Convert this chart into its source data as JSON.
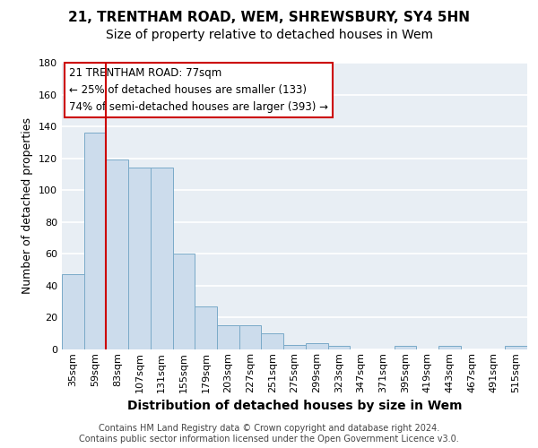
{
  "title1": "21, TRENTHAM ROAD, WEM, SHREWSBURY, SY4 5HN",
  "title2": "Size of property relative to detached houses in Wem",
  "xlabel": "Distribution of detached houses by size in Wem",
  "ylabel": "Number of detached properties",
  "categories": [
    "35sqm",
    "59sqm",
    "83sqm",
    "107sqm",
    "131sqm",
    "155sqm",
    "179sqm",
    "203sqm",
    "227sqm",
    "251sqm",
    "275sqm",
    "299sqm",
    "323sqm",
    "347sqm",
    "371sqm",
    "395sqm",
    "419sqm",
    "443sqm",
    "467sqm",
    "491sqm",
    "515sqm"
  ],
  "values": [
    47,
    136,
    119,
    114,
    114,
    60,
    27,
    15,
    15,
    10,
    3,
    4,
    2,
    0,
    0,
    2,
    0,
    2,
    0,
    0,
    2
  ],
  "bar_color": "#ccdcec",
  "bar_edge_color": "#7aaac8",
  "red_line_x": 2,
  "annotation_title": "21 TRENTHAM ROAD: 77sqm",
  "annotation_line1": "← 25% of detached houses are smaller (133)",
  "annotation_line2": "74% of semi-detached houses are larger (393) →",
  "footer": "Contains HM Land Registry data © Crown copyright and database right 2024.\nContains public sector information licensed under the Open Government Licence v3.0.",
  "ylim": [
    0,
    180
  ],
  "yticks": [
    0,
    20,
    40,
    60,
    80,
    100,
    120,
    140,
    160,
    180
  ],
  "background_color": "#e8eef4",
  "grid_color": "#ffffff",
  "annotation_box_color": "#ffffff",
  "annotation_box_edge": "#cc0000",
  "title1_fontsize": 11,
  "title2_fontsize": 10,
  "tick_fontsize": 8,
  "ylabel_fontsize": 9,
  "xlabel_fontsize": 10,
  "footer_fontsize": 7
}
